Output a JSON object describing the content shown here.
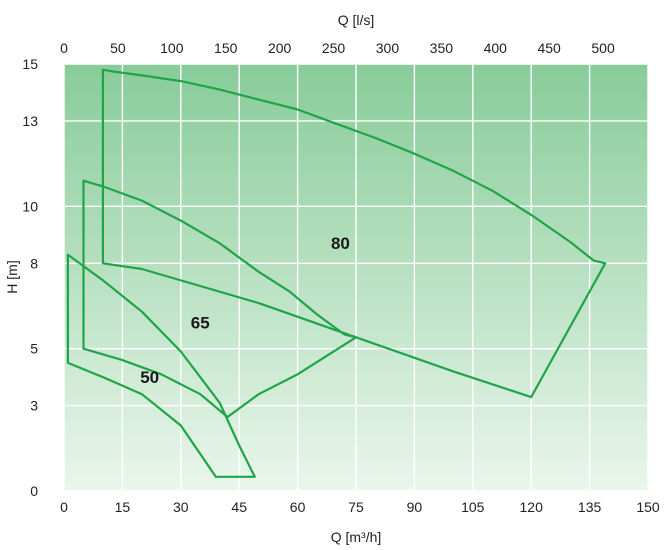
{
  "chart_data": {
    "type": "area",
    "title": "",
    "xlabel": "Q [m³/h]",
    "x2label": "Q [l/s]",
    "ylabel": "H [m]",
    "xlim": [
      0,
      150
    ],
    "x2lim": [
      0,
      541.67
    ],
    "ylim": [
      0,
      15
    ],
    "x_ticks": [
      0,
      15,
      30,
      45,
      60,
      75,
      90,
      105,
      120,
      135,
      150
    ],
    "x2_ticks": [
      0,
      50,
      100,
      150,
      200,
      250,
      300,
      350,
      400,
      450,
      500
    ],
    "y_ticks": [
      0,
      3,
      5,
      8,
      10,
      13,
      15
    ],
    "grid": true,
    "colors": {
      "bg_top": "#88cc99",
      "bg_bottom": "#eaf6ec",
      "outline": "#1fa548"
    },
    "series": [
      {
        "name": "80",
        "label_at": [
          71,
          8.5
        ],
        "points": [
          [
            10,
            14.8
          ],
          [
            12,
            14.75
          ],
          [
            20,
            14.6
          ],
          [
            30,
            14.4
          ],
          [
            40,
            14.1
          ],
          [
            50,
            13.75
          ],
          [
            60,
            13.4
          ],
          [
            70,
            12.9
          ],
          [
            80,
            12.4
          ],
          [
            90,
            11.85
          ],
          [
            100,
            11.25
          ],
          [
            110,
            10.55
          ],
          [
            120,
            9.7
          ],
          [
            130,
            8.75
          ],
          [
            136,
            8.1
          ],
          [
            139,
            8.0
          ],
          [
            120,
            3.3
          ],
          [
            100,
            4.2
          ],
          [
            75,
            5.4
          ],
          [
            50,
            6.6
          ],
          [
            20,
            7.8
          ],
          [
            10,
            8.0
          ],
          [
            10,
            14.8
          ]
        ]
      },
      {
        "name": "65",
        "label_at": [
          35,
          5.7
        ],
        "points": [
          [
            5,
            10.9
          ],
          [
            10,
            10.7
          ],
          [
            20,
            10.2
          ],
          [
            30,
            9.5
          ],
          [
            40,
            8.7
          ],
          [
            50,
            7.7
          ],
          [
            58,
            7.0
          ],
          [
            65,
            6.2
          ],
          [
            72,
            5.5
          ],
          [
            75,
            5.4
          ],
          [
            60,
            4.1
          ],
          [
            50,
            3.4
          ],
          [
            42,
            2.6
          ],
          [
            35,
            3.4
          ],
          [
            25,
            4.1
          ],
          [
            15,
            4.6
          ],
          [
            5,
            5.0
          ],
          [
            5,
            10.9
          ]
        ]
      },
      {
        "name": "50",
        "label_at": [
          22,
          3.8
        ],
        "points": [
          [
            1,
            8.3
          ],
          [
            5,
            7.9
          ],
          [
            10,
            7.4
          ],
          [
            20,
            6.3
          ],
          [
            30,
            4.9
          ],
          [
            40,
            3.1
          ],
          [
            45,
            1.6
          ],
          [
            49,
            0.5
          ],
          [
            39,
            0.5
          ],
          [
            30,
            2.3
          ],
          [
            20,
            3.4
          ],
          [
            10,
            4.0
          ],
          [
            1,
            4.5
          ],
          [
            1,
            8.3
          ]
        ]
      }
    ]
  }
}
